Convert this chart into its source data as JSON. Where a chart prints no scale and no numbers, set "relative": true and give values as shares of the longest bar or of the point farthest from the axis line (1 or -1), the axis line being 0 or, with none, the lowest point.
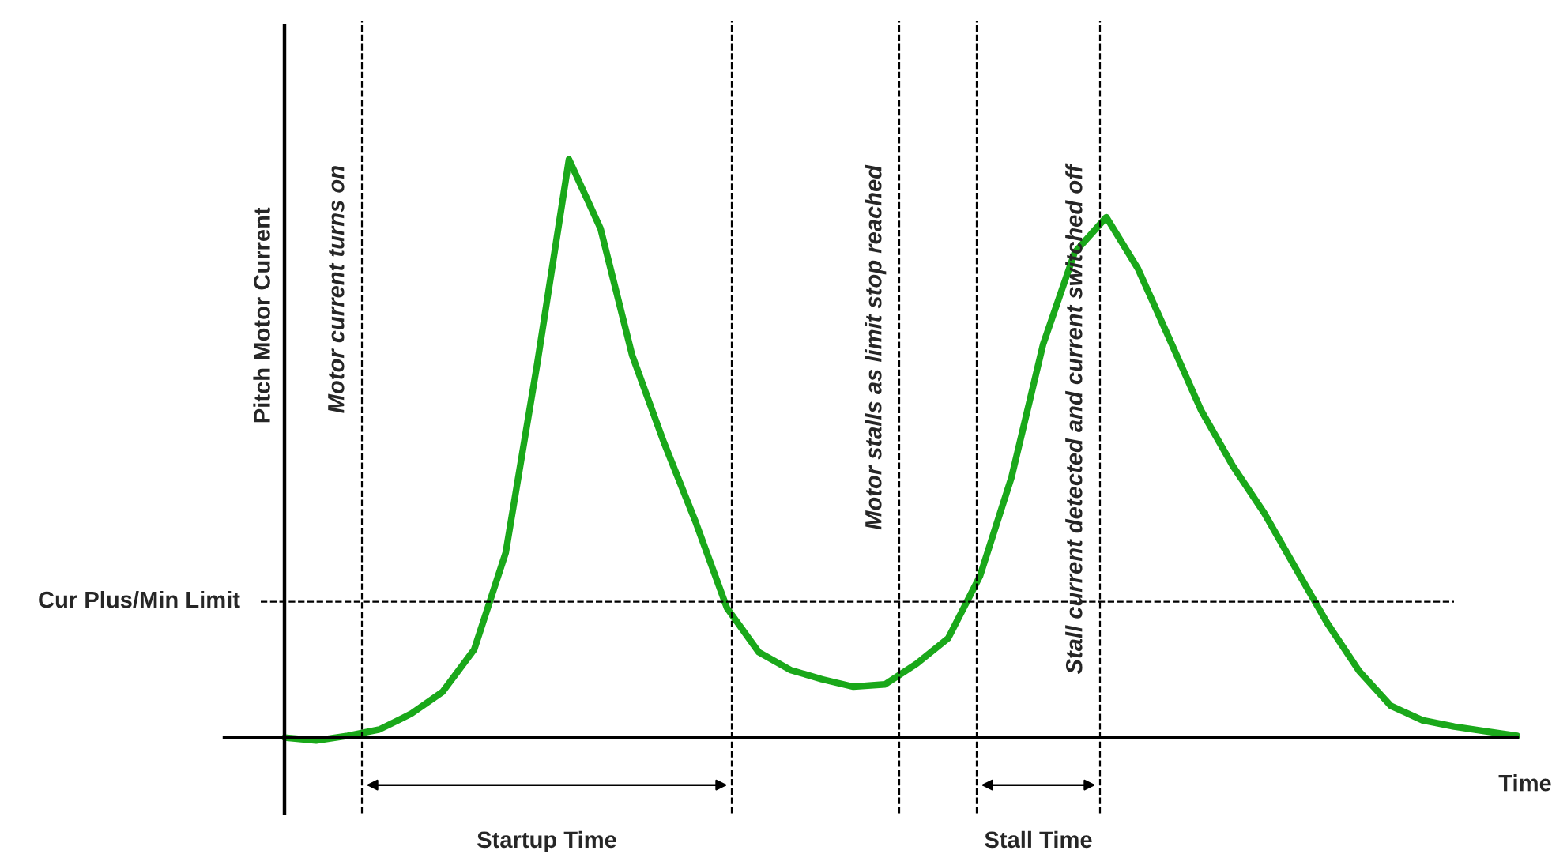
{
  "chart_data": {
    "type": "line",
    "relative": true,
    "xlabel": "Time",
    "ylabel": "Pitch Motor Current",
    "marker": "none",
    "line_style": "solid",
    "categories": [
      null,
      null,
      null,
      null,
      null,
      null,
      null,
      null,
      null,
      null,
      null,
      null,
      null,
      null,
      null,
      null,
      null,
      null,
      null,
      null,
      null,
      null,
      null,
      null,
      null,
      null,
      null,
      null,
      null,
      null,
      null,
      null,
      null,
      null,
      null,
      null,
      null,
      null,
      null,
      null
    ],
    "series": [
      {
        "color": "#1aa81a",
        "values": [
          0,
          -0.005,
          0.003,
          0.014,
          0.041,
          0.079,
          0.152,
          0.32,
          0.648,
          1,
          0.88,
          0.661,
          0.511,
          0.374,
          0.224,
          0.148,
          0.117,
          0.101,
          0.088,
          0.092,
          0.128,
          0.172,
          0.279,
          0.45,
          0.68,
          0.839,
          0.9,
          0.811,
          0.689,
          0.566,
          0.47,
          0.388,
          0.292,
          0.197,
          0.115,
          0.055,
          0.03,
          0.019,
          0.011,
          0.003
        ]
      }
    ],
    "ref_lines": [
      {
        "axis": "y",
        "value": 0.235,
        "label": "Cur Plus/Min Limit",
        "line_style": "dashed",
        "color": "#000000"
      }
    ],
    "annotations": [
      "Motor current turns on",
      "Motor stalls as limit stop reached",
      "Stall current detected and current switched off",
      "Startup Time",
      "Stall Time"
    ]
  }
}
